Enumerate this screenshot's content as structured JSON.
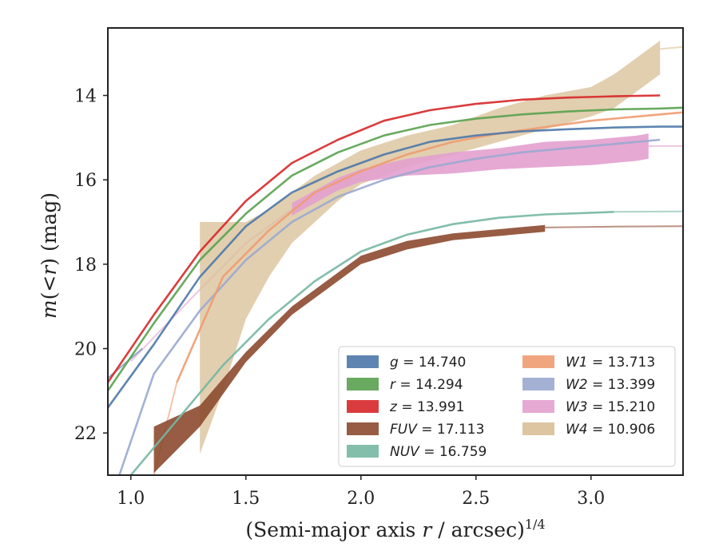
{
  "chart_data": {
    "type": "line",
    "xlabel": "(Semi-major axis r / arcsec)^{1/4}",
    "ylabel": "m(<r) (mag)",
    "xlim": [
      0.9,
      3.4
    ],
    "ylim": [
      23.0,
      12.4
    ],
    "y_inverted": true,
    "xticks": [
      1.0,
      1.5,
      2.0,
      2.5,
      3.0
    ],
    "yticks": [
      14,
      16,
      18,
      20,
      22
    ],
    "grid": false,
    "legend_position": "lower-right",
    "series": [
      {
        "name": "g = 14.740",
        "color": "#4c78a8",
        "kind": "line",
        "x": [
          0.9,
          1.1,
          1.3,
          1.5,
          1.7,
          1.9,
          2.1,
          2.3,
          2.5,
          2.7,
          2.9,
          3.1,
          3.3,
          3.4
        ],
        "y": [
          21.4,
          19.9,
          18.3,
          17.1,
          16.3,
          15.8,
          15.4,
          15.1,
          14.95,
          14.85,
          14.8,
          14.76,
          14.74,
          14.74
        ]
      },
      {
        "name": "r = 14.294",
        "color": "#59a14f",
        "kind": "line",
        "x": [
          0.9,
          1.1,
          1.3,
          1.5,
          1.7,
          1.9,
          2.1,
          2.3,
          2.5,
          2.7,
          2.9,
          3.1,
          3.3,
          3.4
        ],
        "y": [
          21.0,
          19.4,
          17.9,
          16.8,
          15.9,
          15.35,
          14.95,
          14.7,
          14.55,
          14.45,
          14.38,
          14.33,
          14.31,
          14.29
        ]
      },
      {
        "name": "z = 13.991",
        "color": "#d62728",
        "kind": "line",
        "x": [
          0.9,
          1.1,
          1.3,
          1.5,
          1.7,
          1.9,
          2.1,
          2.3,
          2.5,
          2.7,
          2.9,
          3.1,
          3.3
        ],
        "y": [
          20.8,
          19.2,
          17.7,
          16.5,
          15.6,
          15.05,
          14.6,
          14.35,
          14.2,
          14.1,
          14.05,
          14.02,
          14.0
        ]
      },
      {
        "name": "FUV = 17.113",
        "color": "#8c4a2f",
        "kind": "band",
        "x": [
          1.1,
          1.3,
          1.5,
          1.7,
          1.9,
          2.0,
          2.2,
          2.4,
          2.6,
          2.8
        ],
        "y": [
          22.4,
          21.6,
          20.2,
          19.1,
          18.3,
          17.9,
          17.55,
          17.35,
          17.25,
          17.15
        ],
        "halfwidth": [
          0.55,
          0.25,
          0.12,
          0.1,
          0.1,
          0.1,
          0.1,
          0.08,
          0.08,
          0.08
        ]
      },
      {
        "name": "NUV = 16.759",
        "color": "#76b7a2",
        "kind": "line",
        "x": [
          1.0,
          1.2,
          1.4,
          1.6,
          1.8,
          2.0,
          2.2,
          2.4,
          2.6,
          2.8,
          3.0,
          3.1
        ],
        "y": [
          23.0,
          21.7,
          20.4,
          19.3,
          18.4,
          17.7,
          17.3,
          17.05,
          16.9,
          16.82,
          16.78,
          16.76
        ]
      },
      {
        "name": "W1 = 13.713",
        "color": "#ef9b70",
        "kind": "line",
        "x": [
          1.2,
          1.4,
          1.6,
          1.8,
          2.0,
          2.2,
          2.4,
          2.6,
          2.8,
          3.0,
          3.2,
          3.4
        ],
        "y": [
          20.8,
          18.3,
          17.2,
          16.3,
          15.8,
          15.4,
          15.1,
          14.9,
          14.75,
          14.6,
          14.5,
          14.4
        ]
      },
      {
        "name": "W2 = 13.399",
        "color": "#9aa8cf",
        "kind": "line",
        "x": [
          0.95,
          1.1,
          1.3,
          1.5,
          1.7,
          1.9,
          2.1,
          2.3,
          2.5,
          2.7,
          2.9,
          3.1,
          3.3
        ],
        "y": [
          23.0,
          20.6,
          19.1,
          17.9,
          17.0,
          16.4,
          16.0,
          15.7,
          15.5,
          15.35,
          15.25,
          15.15,
          15.05
        ]
      },
      {
        "name": "W3 = 15.210",
        "color": "#e3a0cf",
        "kind": "band",
        "x": [
          1.7,
          1.8,
          1.9,
          2.0,
          2.2,
          2.4,
          2.6,
          2.8,
          3.0,
          3.2,
          3.25
        ],
        "y": [
          16.7,
          16.4,
          16.1,
          15.9,
          15.7,
          15.6,
          15.5,
          15.4,
          15.35,
          15.25,
          15.2
        ],
        "halfwidth": [
          0.15,
          0.15,
          0.15,
          0.15,
          0.2,
          0.25,
          0.25,
          0.3,
          0.3,
          0.3,
          0.3
        ]
      },
      {
        "name": "W4 = 10.906",
        "color": "#d8bf96",
        "kind": "band",
        "x": [
          1.3,
          1.4,
          1.5,
          1.6,
          1.7,
          1.8,
          1.9,
          2.0,
          2.2,
          2.4,
          2.6,
          2.8,
          3.0,
          3.1,
          3.2,
          3.3
        ],
        "y_upper": [
          17.0,
          17.0,
          17.0,
          16.7,
          16.3,
          15.9,
          15.6,
          15.3,
          14.95,
          14.7,
          14.3,
          14.0,
          13.8,
          13.5,
          13.1,
          12.7
        ],
        "y_lower": [
          22.5,
          21.0,
          19.3,
          18.3,
          17.5,
          17.0,
          16.5,
          16.1,
          15.7,
          15.4,
          15.1,
          14.8,
          14.5,
          14.3,
          13.9,
          13.5
        ]
      }
    ],
    "extrapolated_tail": [
      {
        "series": "W4 = 10.906",
        "x": [
          3.3,
          3.4
        ],
        "y": [
          12.9,
          12.85
        ]
      },
      {
        "series": "W1 = 13.713",
        "x": [
          1.1,
          1.2
        ],
        "y": [
          23.0,
          20.8
        ]
      },
      {
        "series": "FUV = 17.113",
        "x": [
          2.8,
          3.1,
          3.4
        ],
        "y": [
          17.13,
          17.11,
          17.1
        ]
      },
      {
        "series": "NUV = 16.759",
        "x": [
          3.1,
          3.4
        ],
        "y": [
          16.76,
          16.75
        ]
      },
      {
        "series": "W3 = 15.210",
        "x": [
          1.0,
          1.3,
          1.5,
          1.7
        ],
        "y": [
          20.3,
          18.6,
          17.5,
          16.7
        ]
      },
      {
        "series": "W3 = 15.210",
        "x": [
          3.25,
          3.4
        ],
        "y": [
          15.2,
          15.2
        ]
      },
      {
        "series": "g = 14.740",
        "x": [
          0.9,
          1.05
        ],
        "y": [
          20.7,
          20.0
        ]
      }
    ],
    "legend": {
      "columns": 2,
      "entries": [
        {
          "label": "g = 14.740",
          "color": "#4c78a8"
        },
        {
          "label": "r = 14.294",
          "color": "#59a14f"
        },
        {
          "label": "z = 13.991",
          "color": "#d62728"
        },
        {
          "label": "FUV = 17.113",
          "color": "#8c4a2f"
        },
        {
          "label": "NUV = 16.759",
          "color": "#76b7a2"
        },
        {
          "label": "W1 = 13.713",
          "color": "#ef9b70"
        },
        {
          "label": "W2 = 13.399",
          "color": "#9aa8cf"
        },
        {
          "label": "W3 = 15.210",
          "color": "#e3a0cf"
        },
        {
          "label": "W4 = 10.906",
          "color": "#d8bf96"
        }
      ]
    }
  }
}
